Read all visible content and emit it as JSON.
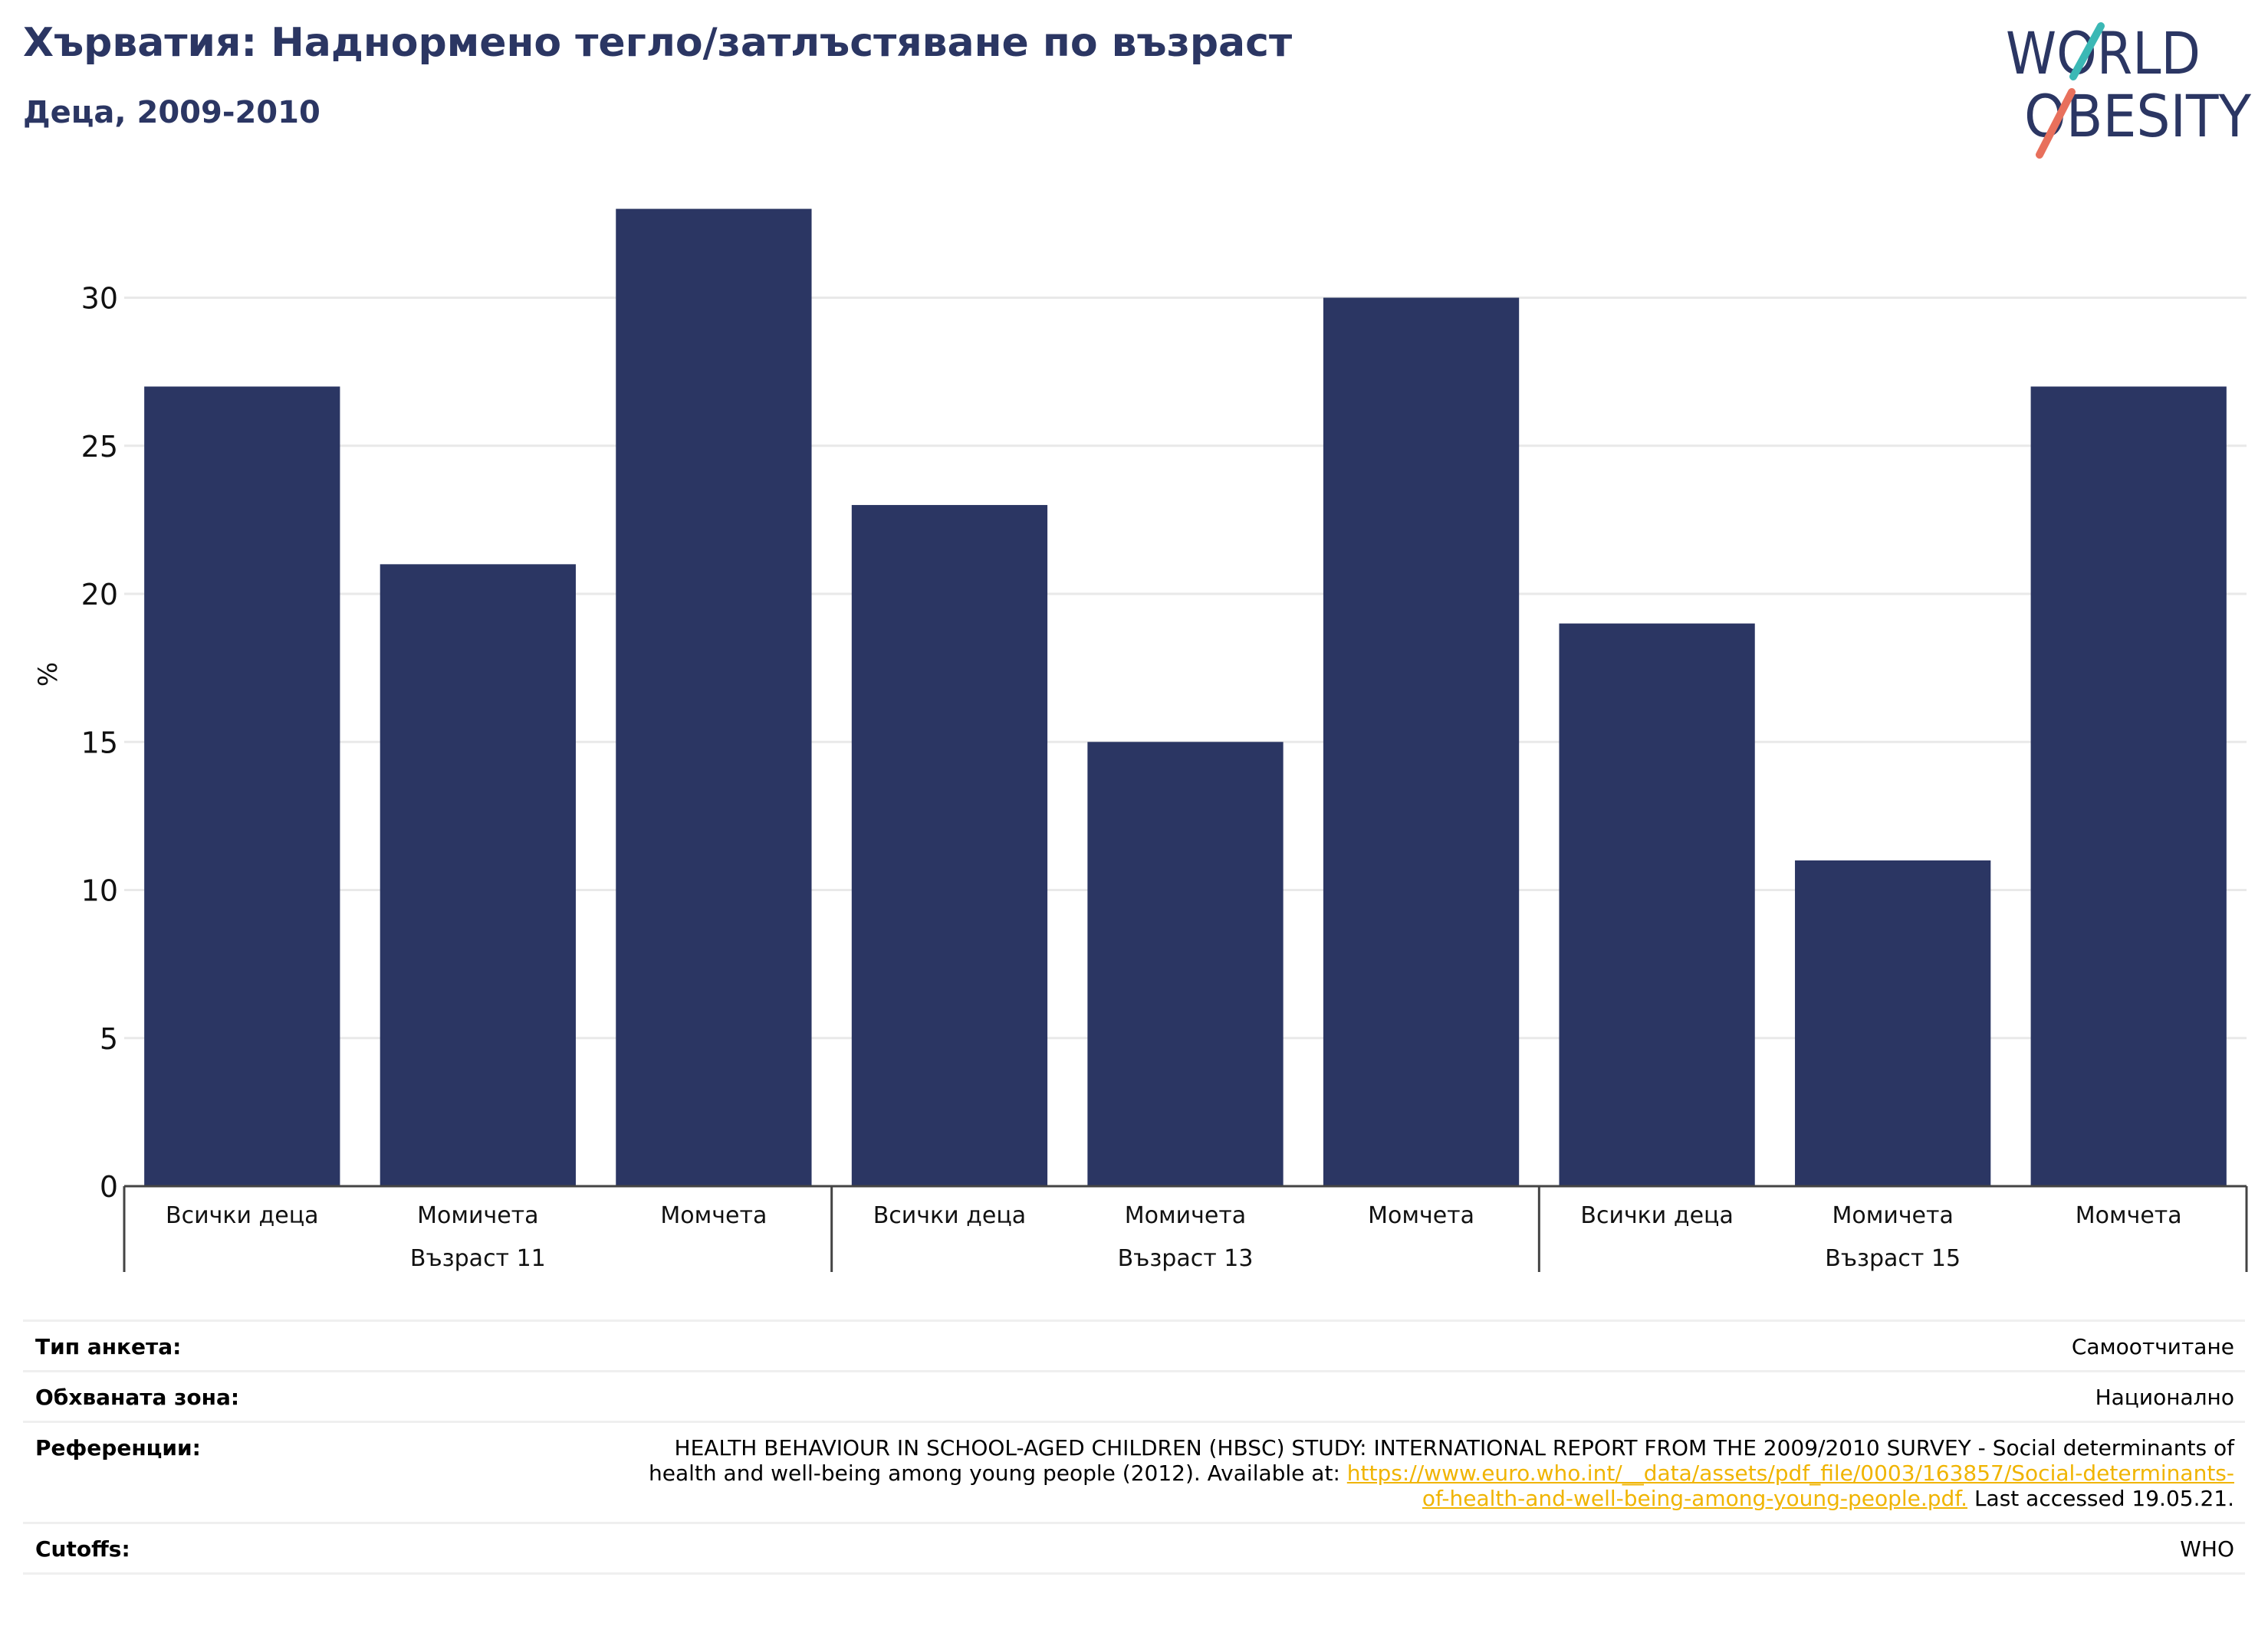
{
  "header": {
    "title": "Хърватия: Наднормено тегло/затлъстяване по възраст",
    "subtitle": "Деца, 2009-2010"
  },
  "logo": {
    "line1": "WORLD",
    "line2": "OBESITY",
    "colors": {
      "text": "#2b3663",
      "slash_top": "#3bb8b5",
      "slash_bottom": "#e8705c"
    }
  },
  "chart_data": {
    "type": "bar",
    "ylabel": "%",
    "ylim": [
      0,
      35
    ],
    "yticks": [
      0,
      5,
      10,
      15,
      20,
      25,
      30
    ],
    "grid": true,
    "bar_color": "#2b3663",
    "groups": [
      {
        "label": "Възраст 11",
        "categories": [
          "Всички деца",
          "Момичета",
          "Момчета"
        ],
        "values": [
          27,
          21,
          33
        ]
      },
      {
        "label": "Възраст 13",
        "categories": [
          "Всички деца",
          "Момичета",
          "Момчета"
        ],
        "values": [
          23,
          15,
          30
        ]
      },
      {
        "label": "Възраст 15",
        "categories": [
          "Всички деца",
          "Момичета",
          "Момчета"
        ],
        "values": [
          19,
          11,
          27
        ]
      }
    ]
  },
  "info": {
    "survey_type": {
      "label": "Тип анкета:",
      "value": "Самоотчитане"
    },
    "coverage": {
      "label": "Обхваната зона:",
      "value": "Национално"
    },
    "references": {
      "label": "Референции:",
      "text_before": "HEALTH BEHAVIOUR IN SCHOOL-AGED CHILDREN (HBSC) STUDY: INTERNATIONAL REPORT FROM THE 2009/2010 SURVEY - Social determinants of health and well-being among young people (2012). Available at:",
      "link": "https://www.euro.who.int/__data/assets/pdf_file/0003/163857/Social-determinants-of-health-and-well-being-among-young-people.pdf.",
      "text_after": "Last accessed 19.05.21."
    },
    "cutoffs": {
      "label": "Cutoffs:",
      "value": "WHO"
    }
  }
}
